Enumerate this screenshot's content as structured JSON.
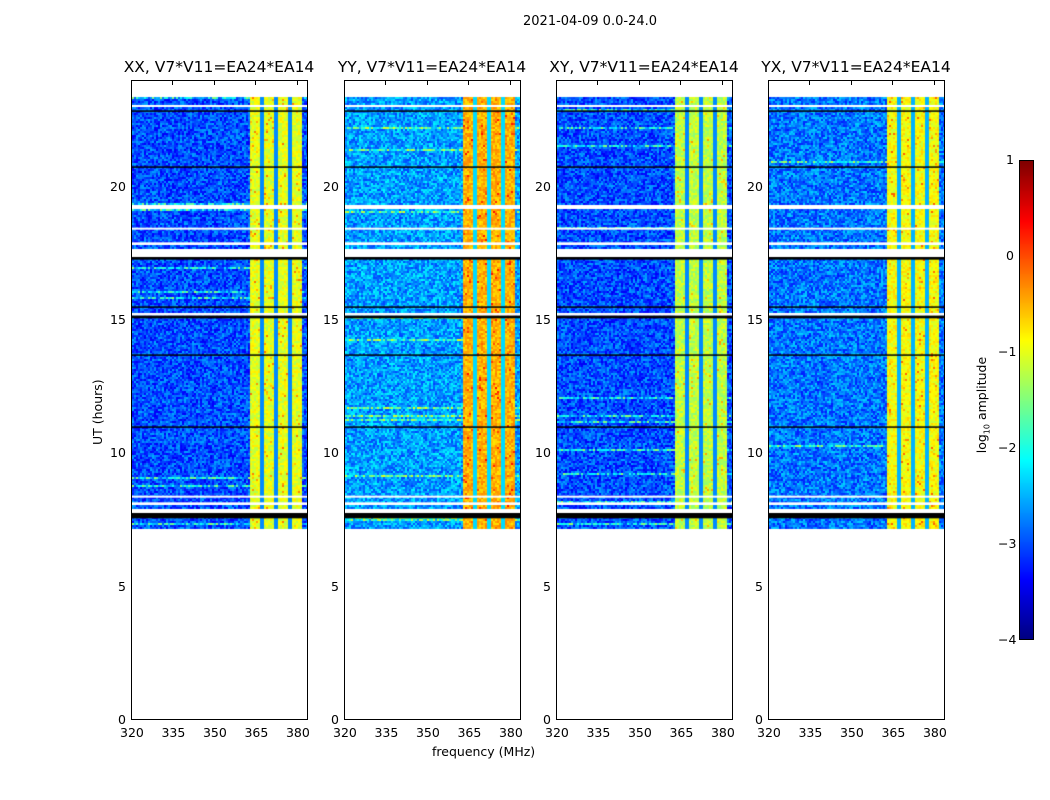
{
  "chart_data": {
    "type": "heatmap",
    "title": "2021-04-09 0.0-24.0",
    "xlabel": "frequency (MHz)",
    "ylabel": "UT (hours)",
    "colorbar_label": "log10 amplitude",
    "colorbar_ticks": [
      "1",
      "0",
      "−1",
      "−2",
      "−3",
      "−4"
    ],
    "colorbar_range": [
      -4,
      1
    ],
    "colormap": "jet",
    "xlim": [
      320,
      384
    ],
    "ylim": [
      0,
      24
    ],
    "xticks": [
      "320",
      "335",
      "350",
      "365",
      "380"
    ],
    "yticks": [
      "0",
      "5",
      "10",
      "15",
      "20"
    ],
    "data_time_range_hours": [
      7.2,
      23.4
    ],
    "band_MHz": [
      362,
      381
    ],
    "panels": [
      {
        "title": "XX, V7*V11=EA24*EA14",
        "offband_level": -3.0,
        "band_level": -1.0
      },
      {
        "title": "YY, V7*V11=EA24*EA14",
        "offband_level": -2.6,
        "band_level": -0.5
      },
      {
        "title": "XY, V7*V11=EA24*EA14",
        "offband_level": -3.0,
        "band_level": -1.2
      },
      {
        "title": "YX, V7*V11=EA24*EA14",
        "offband_level": -2.8,
        "band_level": -0.9
      }
    ],
    "flagged_hours": [
      [
        7.8,
        7.95
      ],
      [
        8.1,
        8.2
      ],
      [
        8.4,
        8.45
      ],
      [
        17.4,
        17.7
      ],
      [
        17.85,
        17.95
      ],
      [
        18.45,
        18.5
      ],
      [
        19.2,
        19.35
      ],
      [
        15.2,
        15.3
      ],
      [
        23.05,
        23.1
      ]
    ],
    "dark_hours": [
      [
        7.6,
        7.8
      ],
      [
        17.3,
        17.4
      ],
      [
        15.1,
        15.2
      ],
      [
        15.5,
        15.55
      ],
      [
        13.7,
        13.75
      ],
      [
        11.0,
        11.05
      ],
      [
        22.85,
        22.9
      ],
      [
        20.75,
        20.8
      ]
    ]
  }
}
